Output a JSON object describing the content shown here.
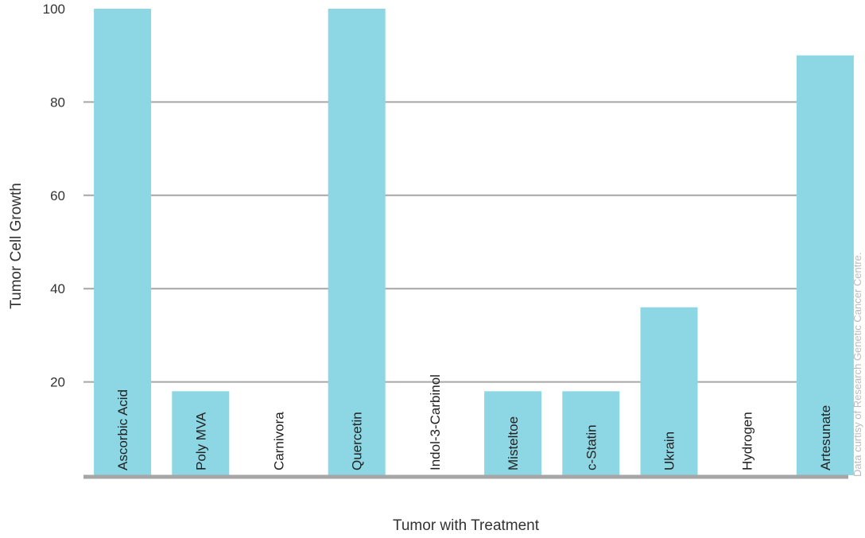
{
  "chart_data": {
    "type": "bar",
    "categories": [
      "Ascorbic Acid",
      "Poly MVA",
      "Carnivora",
      "Quercetin",
      "Indol-3-Carbinol",
      "Misteltoe",
      "c-Statin",
      "Ukrain",
      "Hydrogen",
      "Artesunate"
    ],
    "values": [
      100,
      18,
      0,
      100,
      0,
      18,
      18,
      36,
      0,
      90
    ],
    "xlabel": "Tumor with Treatment",
    "ylabel": "Tumor Cell Growth",
    "yticks": [
      20,
      40,
      60,
      80,
      100
    ],
    "ylim": [
      0,
      100
    ],
    "grid": true,
    "bar_color": "#8dd6e4",
    "grid_color": "#a6a6a6",
    "credit": "Data curtisy of Research Genetic Cancer Centre.",
    "credit_color": "#bbbbbb"
  }
}
